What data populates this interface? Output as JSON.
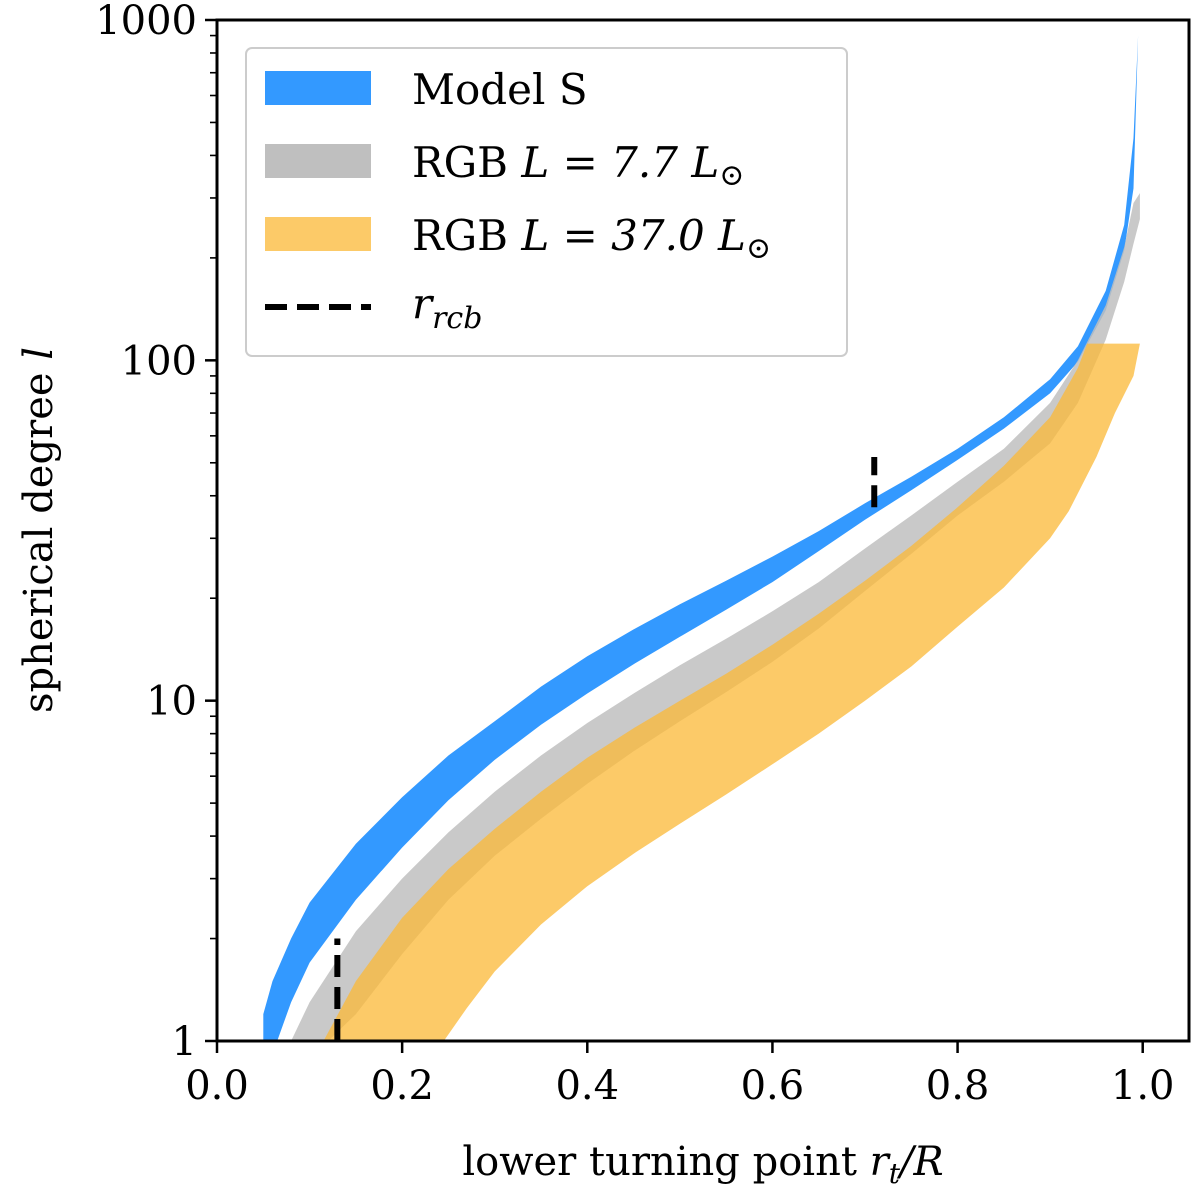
{
  "chart_data": {
    "type": "area",
    "xlabel": "lower turning point r_t/R",
    "xlabel_plain": "lower turning point ",
    "xlabel_math": "r",
    "xlabel_sub": "t",
    "xlabel_rest": "/R",
    "ylabel": "spherical degree l",
    "ylabel_plain": "spherical degree ",
    "ylabel_math": "l",
    "xlim": [
      0.0,
      1.05
    ],
    "ylim": [
      1,
      1000
    ],
    "yscale": "log",
    "xticks": [
      "0.0",
      "0.2",
      "0.4",
      "0.6",
      "0.8",
      "1.0"
    ],
    "xtick_values": [
      0.0,
      0.2,
      0.4,
      0.6,
      0.8,
      1.0
    ],
    "yticks": [
      "1",
      "10",
      "100",
      "1000"
    ],
    "ytick_values": [
      1,
      10,
      100,
      1000
    ],
    "legend": {
      "position": "top-left",
      "entries": [
        {
          "label": "Model S",
          "math": "",
          "sub": ""
        },
        {
          "label": "RGB ",
          "math": "L = 7.7 L",
          "sub": "⊙"
        },
        {
          "label": "RGB ",
          "math": "L = 37.0 L",
          "sub": "⊙"
        },
        {
          "label": "",
          "math": "r",
          "sub": "rcb"
        }
      ]
    },
    "series": [
      {
        "name": "Model S",
        "color": "#3399ff",
        "opacity": 1.0,
        "upper": [
          [
            0.05,
            1.2
          ],
          [
            0.06,
            1.5
          ],
          [
            0.08,
            2.0
          ],
          [
            0.1,
            2.55
          ],
          [
            0.15,
            3.8
          ],
          [
            0.2,
            5.2
          ],
          [
            0.25,
            6.9
          ],
          [
            0.3,
            8.7
          ],
          [
            0.35,
            11
          ],
          [
            0.4,
            13.5
          ],
          [
            0.45,
            16.2
          ],
          [
            0.5,
            19.2
          ],
          [
            0.55,
            22.5
          ],
          [
            0.6,
            26.5
          ],
          [
            0.65,
            31.5
          ],
          [
            0.7,
            38
          ],
          [
            0.75,
            45.5
          ],
          [
            0.8,
            55
          ],
          [
            0.85,
            68
          ],
          [
            0.9,
            88
          ],
          [
            0.93,
            110
          ],
          [
            0.96,
            160
          ],
          [
            0.98,
            250
          ],
          [
            0.99,
            450
          ],
          [
            0.995,
            900
          ]
        ],
        "lower": [
          [
            0.05,
            1.0
          ],
          [
            0.065,
            1.0
          ],
          [
            0.08,
            1.3
          ],
          [
            0.1,
            1.7
          ],
          [
            0.15,
            2.6
          ],
          [
            0.2,
            3.7
          ],
          [
            0.25,
            5.1
          ],
          [
            0.3,
            6.7
          ],
          [
            0.35,
            8.5
          ],
          [
            0.4,
            10.5
          ],
          [
            0.45,
            12.8
          ],
          [
            0.5,
            15.4
          ],
          [
            0.55,
            18.5
          ],
          [
            0.6,
            22.3
          ],
          [
            0.65,
            27.5
          ],
          [
            0.7,
            34
          ],
          [
            0.75,
            41.5
          ],
          [
            0.8,
            51
          ],
          [
            0.85,
            63
          ],
          [
            0.9,
            80
          ],
          [
            0.93,
            99
          ],
          [
            0.96,
            140
          ],
          [
            0.98,
            210
          ],
          [
            0.99,
            320
          ],
          [
            0.995,
            900
          ]
        ]
      },
      {
        "name": "RGB L = 7.7 Lsun",
        "color": "#bfbfbf",
        "opacity": 0.85,
        "upper": [
          [
            0.08,
            1.0
          ],
          [
            0.1,
            1.3
          ],
          [
            0.15,
            2.1
          ],
          [
            0.2,
            3.0
          ],
          [
            0.25,
            4.1
          ],
          [
            0.3,
            5.4
          ],
          [
            0.35,
            6.9
          ],
          [
            0.4,
            8.6
          ],
          [
            0.45,
            10.5
          ],
          [
            0.5,
            12.7
          ],
          [
            0.55,
            15.2
          ],
          [
            0.6,
            18.3
          ],
          [
            0.65,
            22.3
          ],
          [
            0.7,
            28
          ],
          [
            0.75,
            35
          ],
          [
            0.8,
            44
          ],
          [
            0.85,
            55
          ],
          [
            0.9,
            75
          ],
          [
            0.93,
            100
          ],
          [
            0.96,
            145
          ],
          [
            0.98,
            215
          ],
          [
            0.99,
            290
          ],
          [
            0.997,
            310
          ]
        ],
        "lower": [
          [
            0.08,
            1.0
          ],
          [
            0.12,
            1.0
          ],
          [
            0.15,
            1.2
          ],
          [
            0.2,
            1.8
          ],
          [
            0.25,
            2.6
          ],
          [
            0.3,
            3.5
          ],
          [
            0.35,
            4.5
          ],
          [
            0.4,
            5.7
          ],
          [
            0.45,
            7.1
          ],
          [
            0.5,
            8.7
          ],
          [
            0.55,
            10.6
          ],
          [
            0.6,
            13
          ],
          [
            0.65,
            16.3
          ],
          [
            0.7,
            21
          ],
          [
            0.75,
            27
          ],
          [
            0.8,
            35
          ],
          [
            0.85,
            44
          ],
          [
            0.9,
            57
          ],
          [
            0.93,
            75
          ],
          [
            0.96,
            115
          ],
          [
            0.98,
            170
          ],
          [
            0.99,
            220
          ],
          [
            0.997,
            260
          ]
        ]
      },
      {
        "name": "RGB L = 37.0 Lsun",
        "color": "#fbb835",
        "opacity": 0.75,
        "upper": [
          [
            0.115,
            1.0
          ],
          [
            0.15,
            1.5
          ],
          [
            0.2,
            2.3
          ],
          [
            0.25,
            3.2
          ],
          [
            0.3,
            4.2
          ],
          [
            0.35,
            5.4
          ],
          [
            0.4,
            6.8
          ],
          [
            0.45,
            8.3
          ],
          [
            0.5,
            10
          ],
          [
            0.55,
            12
          ],
          [
            0.6,
            14.6
          ],
          [
            0.65,
            18
          ],
          [
            0.7,
            22.5
          ],
          [
            0.75,
            28.5
          ],
          [
            0.8,
            37
          ],
          [
            0.85,
            49
          ],
          [
            0.9,
            68
          ],
          [
            0.93,
            95
          ],
          [
            0.94,
            112
          ],
          [
            0.997,
            112
          ]
        ],
        "lower": [
          [
            0.115,
            1.0
          ],
          [
            0.245,
            1.0
          ],
          [
            0.27,
            1.25
          ],
          [
            0.3,
            1.6
          ],
          [
            0.35,
            2.2
          ],
          [
            0.4,
            2.85
          ],
          [
            0.45,
            3.55
          ],
          [
            0.5,
            4.35
          ],
          [
            0.55,
            5.3
          ],
          [
            0.6,
            6.5
          ],
          [
            0.65,
            8
          ],
          [
            0.7,
            10
          ],
          [
            0.75,
            12.6
          ],
          [
            0.8,
            16.5
          ],
          [
            0.85,
            21.5
          ],
          [
            0.9,
            30
          ],
          [
            0.92,
            36
          ],
          [
            0.95,
            52
          ],
          [
            0.97,
            70
          ],
          [
            0.99,
            90
          ],
          [
            0.997,
            112
          ]
        ]
      }
    ],
    "rcb_markers": [
      {
        "series": "Model S",
        "x": 0.71,
        "y_range": [
          37,
          52
        ]
      },
      {
        "series": "RGB L = 7.7 Lsun",
        "x": 0.13,
        "y_range": [
          1.0,
          2.0
        ]
      }
    ]
  }
}
